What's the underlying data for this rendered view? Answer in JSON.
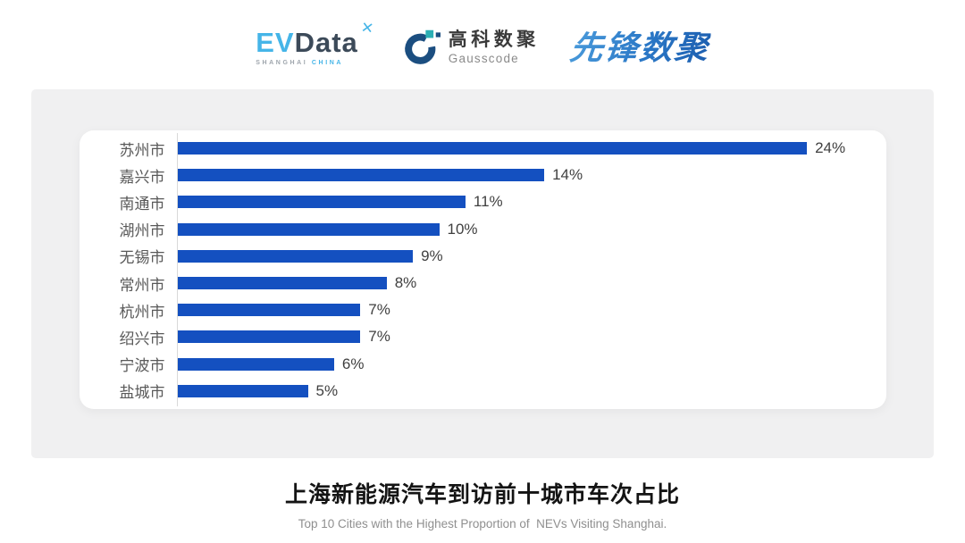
{
  "header": {
    "logos": {
      "evdata": {
        "ev": "EV",
        "data": "Data",
        "mark": "✕",
        "sub_shanghai": "SHANGHAI",
        "sub_china": "CHINA",
        "ev_color": "#45B5E8",
        "data_color": "#3C4A59"
      },
      "gausscode": {
        "cn": "高科数聚",
        "en": "Gausscode",
        "mark_color": "#1B4E80",
        "mark_accent_color": "#2BAFB4"
      },
      "pioneer": {
        "text": "先锋数聚",
        "color": "#2E7CC8"
      }
    }
  },
  "chart_data": {
    "type": "bar",
    "orientation": "horizontal",
    "title": "上海新能源汽车到访前十城市车次占比",
    "subtitle": "Top 10 Cities with the Highest Proportion of  NEVs Visiting Shanghai.",
    "categories": [
      "苏州市",
      "嘉兴市",
      "南通市",
      "湖州市",
      "无锡市",
      "常州市",
      "杭州市",
      "绍兴市",
      "宁波市",
      "盐城市"
    ],
    "values": [
      24,
      14,
      11,
      10,
      9,
      8,
      7,
      7,
      6,
      5
    ],
    "unit": "%",
    "xlim": [
      0,
      26
    ],
    "grid": false,
    "legend": false,
    "data_labels": "outside-end",
    "bar_color": "#1450C0",
    "category_label_color": "#595959",
    "value_label_color": "#404040",
    "axis_line_color": "#D9D9D9"
  },
  "footer": {
    "title": "上海新能源汽车到访前十城市车次占比",
    "subtitle": "Top 10 Cities with the Highest Proportion of  NEVs Visiting Shanghai."
  }
}
